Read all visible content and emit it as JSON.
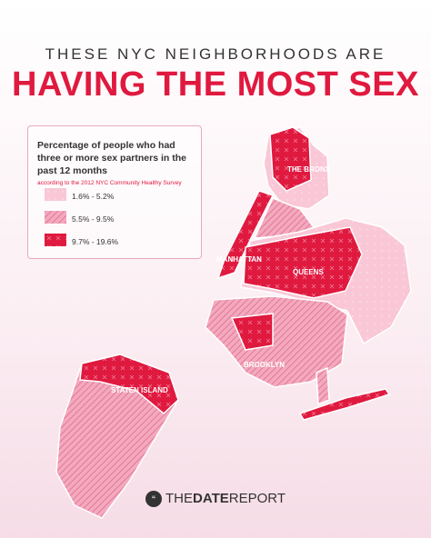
{
  "header": {
    "kicker": "THESE NYC NEIGHBORHOODS ARE",
    "title": "HAVING THE MOST SEX"
  },
  "legend": {
    "title": "Percentage of people who had three or more sex partners in the past 12 months",
    "source": "according to the 2012 NYC Community Healthy Survey",
    "items": [
      {
        "label": "1.6% - 5.2%"
      },
      {
        "label": "5.5% - 9.5%"
      },
      {
        "label": "9.7% - 19.6%"
      }
    ]
  },
  "map": {
    "labels": [
      "THE BRONX",
      "MANHATTAN",
      "QUEENS",
      "BROOKLYN",
      "STATEN ISLAND"
    ]
  },
  "footer": {
    "brand_prefix": "THE",
    "brand_bold": "DATE",
    "brand_suffix": "REPORT"
  }
}
